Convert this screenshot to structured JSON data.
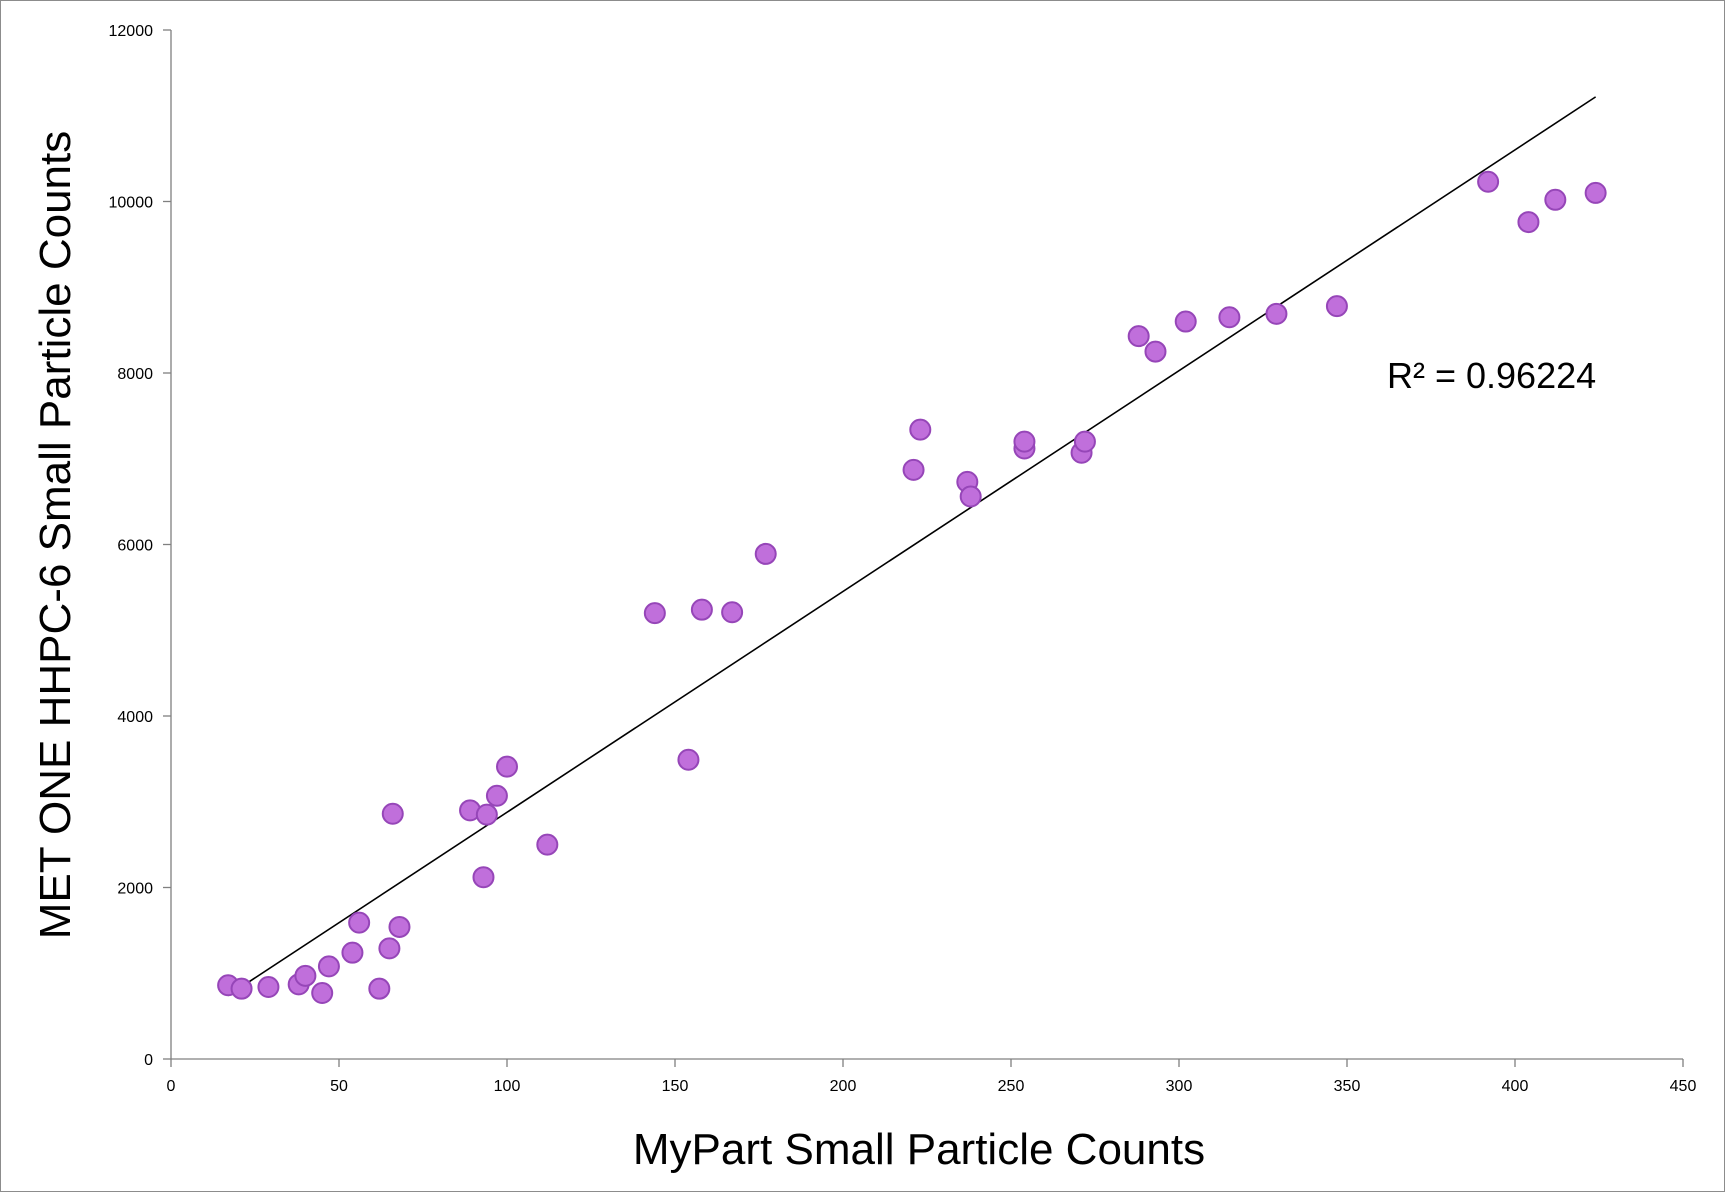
{
  "chart_data": {
    "type": "scatter",
    "xlabel": "MyPart Small Particle Counts",
    "ylabel": "MET ONE HHPC-6 Small Particle Counts",
    "xlim": [
      0,
      450
    ],
    "ylim": [
      0,
      12000
    ],
    "xticks": [
      0,
      50,
      100,
      150,
      200,
      250,
      300,
      350,
      400,
      450
    ],
    "yticks": [
      0,
      2000,
      4000,
      6000,
      8000,
      10000,
      12000
    ],
    "grid": false,
    "marker_color": "#c06fdb",
    "marker_edge_color": "#9646b8",
    "trendline_color": "#000000",
    "points": [
      {
        "x": 17,
        "y": 860
      },
      {
        "x": 21,
        "y": 820
      },
      {
        "x": 29,
        "y": 840
      },
      {
        "x": 38,
        "y": 870
      },
      {
        "x": 40,
        "y": 970
      },
      {
        "x": 45,
        "y": 770
      },
      {
        "x": 47,
        "y": 1080
      },
      {
        "x": 54,
        "y": 1240
      },
      {
        "x": 56,
        "y": 1590
      },
      {
        "x": 62,
        "y": 820
      },
      {
        "x": 65,
        "y": 1290
      },
      {
        "x": 66,
        "y": 2860
      },
      {
        "x": 68,
        "y": 1540
      },
      {
        "x": 89,
        "y": 2900
      },
      {
        "x": 93,
        "y": 2120
      },
      {
        "x": 94,
        "y": 2850
      },
      {
        "x": 97,
        "y": 3070
      },
      {
        "x": 100,
        "y": 3410
      },
      {
        "x": 112,
        "y": 2500
      },
      {
        "x": 144,
        "y": 5200
      },
      {
        "x": 154,
        "y": 3490
      },
      {
        "x": 158,
        "y": 5240
      },
      {
        "x": 167,
        "y": 5210
      },
      {
        "x": 177,
        "y": 5890
      },
      {
        "x": 221,
        "y": 6870
      },
      {
        "x": 223,
        "y": 7340
      },
      {
        "x": 237,
        "y": 6730
      },
      {
        "x": 238,
        "y": 6560
      },
      {
        "x": 254,
        "y": 7120
      },
      {
        "x": 254,
        "y": 7200
      },
      {
        "x": 271,
        "y": 7070
      },
      {
        "x": 272,
        "y": 7200
      },
      {
        "x": 288,
        "y": 8430
      },
      {
        "x": 293,
        "y": 8250
      },
      {
        "x": 302,
        "y": 8600
      },
      {
        "x": 315,
        "y": 8650
      },
      {
        "x": 329,
        "y": 8690
      },
      {
        "x": 347,
        "y": 8780
      },
      {
        "x": 392,
        "y": 10230
      },
      {
        "x": 404,
        "y": 9760
      },
      {
        "x": 412,
        "y": 10020
      },
      {
        "x": 424,
        "y": 10100
      }
    ],
    "trendline": {
      "x": [
        17,
        424
      ],
      "y": [
        740,
        11220
      ]
    },
    "annotation": "R² = 0.96224"
  }
}
